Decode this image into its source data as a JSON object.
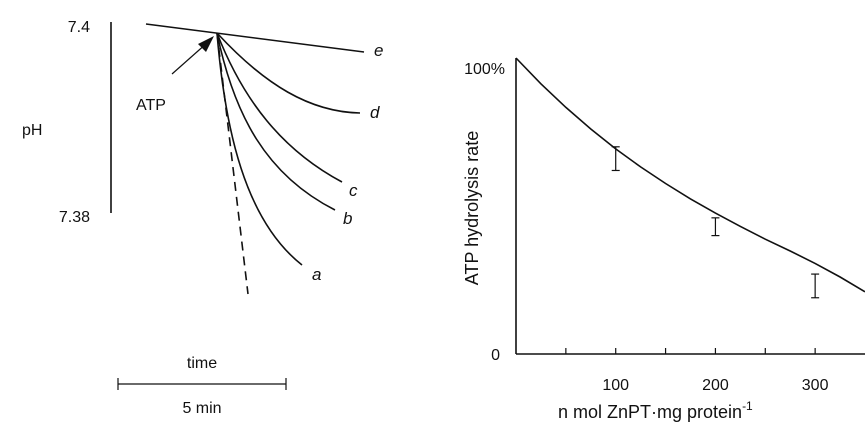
{
  "chart_data": [
    {
      "type": "line",
      "ylabel": "pH",
      "y_ticks": [
        "7.4",
        "7.38"
      ],
      "ylim": [
        7.38,
        7.4
      ],
      "annotation": "ATP",
      "scale_bar": {
        "label_top": "time",
        "label_bottom": "5 min",
        "duration_min": 5
      },
      "series": [
        {
          "name": "e"
        },
        {
          "name": "d"
        },
        {
          "name": "c"
        },
        {
          "name": "b"
        },
        {
          "name": "a"
        },
        {
          "name": ""
        }
      ]
    },
    {
      "type": "line",
      "ylabel": "ATP hydrolysis rate",
      "xlabel": "n mol ZnPT·mg protein",
      "xlabel_superscript": "-1",
      "xlim": [
        0,
        350
      ],
      "ylim": [
        0,
        100
      ],
      "x_ticks": [
        "100",
        "200",
        "300"
      ],
      "y_ticks": [
        "0",
        "100%"
      ],
      "curve": {
        "x": [
          0,
          25,
          50,
          75,
          100,
          125,
          150,
          175,
          200,
          225,
          250,
          275,
          300,
          325,
          350
        ],
        "y": [
          100,
          91.3,
          83.3,
          76,
          69.3,
          63.2,
          57.6,
          52.4,
          47.6,
          43.1,
          38.8,
          34.8,
          30.6,
          26,
          21
        ]
      },
      "points": [
        {
          "x": 100,
          "y": 66,
          "err": 4
        },
        {
          "x": 200,
          "y": 43,
          "err": 3
        },
        {
          "x": 300,
          "y": 23,
          "err": 4
        }
      ]
    }
  ]
}
